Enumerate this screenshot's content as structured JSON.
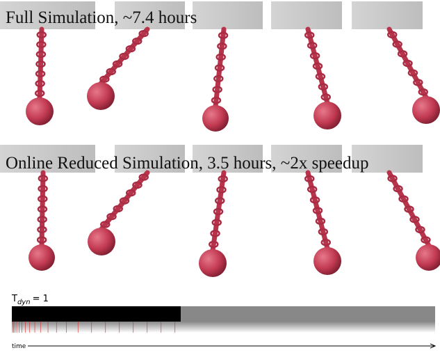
{
  "rows": [
    {
      "caption": "Full Simulation, ~7.4 hours"
    },
    {
      "caption": "Online Reduced Simulation, 3.5 hours, ~2x speedup"
    }
  ],
  "timeline": {
    "label_main": "T",
    "label_sub": "dyn",
    "label_rest": "= 1",
    "axis_label": "time"
  }
}
